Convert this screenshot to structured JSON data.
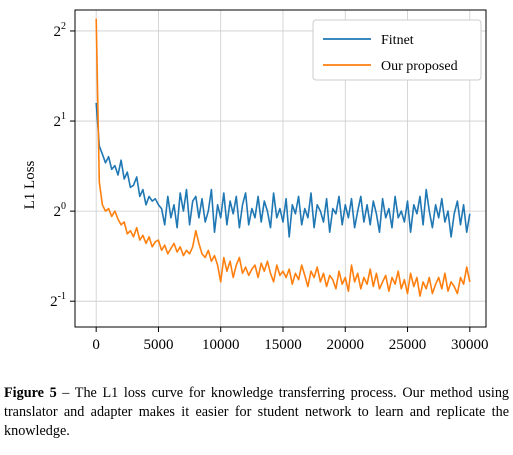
{
  "chart_data": {
    "type": "line",
    "ylabel": "L1 Loss",
    "y_scale": "log2",
    "ylim": [
      0.41,
      4.7
    ],
    "xlim": [
      -1700,
      31300
    ],
    "x_ticks": [
      0,
      5000,
      10000,
      15000,
      20000,
      25000,
      30000
    ],
    "x_tick_labels": [
      "0",
      "5000",
      "10000",
      "15000",
      "20000",
      "25000",
      "30000"
    ],
    "y_ticks": [
      0.5,
      1,
      2,
      4
    ],
    "y_tick_labels": [
      {
        "base": "2",
        "exp": "-1"
      },
      {
        "base": "2",
        "exp": "0"
      },
      {
        "base": "2",
        "exp": "1"
      },
      {
        "base": "2",
        "exp": "2"
      }
    ],
    "grid": true,
    "legend_position": "top-right",
    "series": [
      {
        "name": "Fitnet",
        "color": "#1f77b4",
        "x": [
          0,
          250,
          500,
          750,
          1000,
          1250,
          1500,
          1750,
          2000,
          2250,
          2500,
          2750,
          3000,
          3250,
          3500,
          3750,
          4000,
          4250,
          4500,
          4750,
          5000,
          5250,
          5500,
          5750,
          6000,
          6250,
          6500,
          6750,
          7000,
          7250,
          7500,
          7750,
          8000,
          8250,
          8500,
          8750,
          9000,
          9250,
          9500,
          9750,
          10000,
          10250,
          10500,
          10750,
          11000,
          11250,
          11500,
          11750,
          12000,
          12250,
          12500,
          12750,
          13000,
          13250,
          13500,
          13750,
          14000,
          14250,
          14500,
          14750,
          15000,
          15250,
          15500,
          15750,
          16000,
          16250,
          16500,
          16750,
          17000,
          17250,
          17500,
          17750,
          18000,
          18250,
          18500,
          18750,
          19000,
          19250,
          19500,
          19750,
          20000,
          20250,
          20500,
          20750,
          21000,
          21250,
          21500,
          21750,
          22000,
          22250,
          22500,
          22750,
          23000,
          23250,
          23500,
          23750,
          24000,
          24250,
          24500,
          24750,
          25000,
          25250,
          25500,
          25750,
          26000,
          26250,
          26500,
          26750,
          27000,
          27250,
          27500,
          27750,
          28000,
          28250,
          28500,
          28750,
          29000,
          29250,
          29500,
          29750,
          30000
        ],
        "values": [
          2.3,
          1.65,
          1.55,
          1.45,
          1.52,
          1.38,
          1.42,
          1.32,
          1.48,
          1.28,
          1.35,
          1.2,
          1.22,
          1.3,
          1.12,
          1.18,
          1.05,
          1.12,
          1.08,
          1.1,
          1.05,
          1.02,
          0.9,
          1.12,
          0.95,
          1.05,
          0.88,
          1.15,
          1.0,
          1.18,
          0.9,
          1.08,
          1.12,
          0.95,
          1.1,
          0.92,
          1.0,
          1.18,
          0.85,
          1.05,
          0.95,
          1.15,
          0.9,
          1.08,
          0.98,
          1.12,
          0.88,
          1.05,
          1.15,
          0.9,
          1.02,
          0.95,
          1.12,
          0.92,
          1.08,
          1.0,
          0.88,
          1.15,
          0.95,
          1.02,
          0.92,
          1.1,
          0.82,
          1.05,
          0.98,
          1.12,
          0.9,
          1.02,
          0.95,
          1.15,
          0.88,
          1.05,
          1.0,
          0.92,
          1.1,
          0.85,
          1.02,
          0.98,
          1.12,
          0.9,
          1.05,
          0.95,
          1.1,
          0.88,
          1.0,
          1.12,
          0.92,
          1.05,
          0.9,
          1.08,
          0.98,
          0.85,
          1.1,
          0.95,
          1.02,
          0.88,
          1.12,
          0.95,
          1.0,
          0.92,
          1.08,
          0.85,
          1.05,
          0.98,
          1.12,
          0.9,
          1.18,
          1.0,
          0.88,
          1.05,
          0.95,
          1.1,
          0.92,
          1.0,
          0.82,
          0.98,
          1.08,
          0.9,
          1.05,
          0.85,
          0.98
        ]
      },
      {
        "name": "Our proposed",
        "color": "#ff7f0e",
        "x": [
          0,
          250,
          500,
          750,
          1000,
          1250,
          1500,
          1750,
          2000,
          2250,
          2500,
          2750,
          3000,
          3250,
          3500,
          3750,
          4000,
          4250,
          4500,
          4750,
          5000,
          5250,
          5500,
          5750,
          6000,
          6250,
          6500,
          6750,
          7000,
          7250,
          7500,
          7750,
          8000,
          8250,
          8500,
          8750,
          9000,
          9250,
          9500,
          9750,
          10000,
          10250,
          10500,
          10750,
          11000,
          11250,
          11500,
          11750,
          12000,
          12250,
          12500,
          12750,
          13000,
          13250,
          13500,
          13750,
          14000,
          14250,
          14500,
          14750,
          15000,
          15250,
          15500,
          15750,
          16000,
          16250,
          16500,
          16750,
          17000,
          17250,
          17500,
          17750,
          18000,
          18250,
          18500,
          18750,
          19000,
          19250,
          19500,
          19750,
          20000,
          20250,
          20500,
          20750,
          21000,
          21250,
          21500,
          21750,
          22000,
          22250,
          22500,
          22750,
          23000,
          23250,
          23500,
          23750,
          24000,
          24250,
          24500,
          24750,
          25000,
          25250,
          25500,
          25750,
          26000,
          26250,
          26500,
          26750,
          27000,
          27250,
          27500,
          27750,
          28000,
          28250,
          28500,
          28750,
          29000,
          29250,
          29500,
          29750,
          30000
        ],
        "values": [
          4.4,
          1.25,
          1.05,
          1.0,
          1.02,
          0.96,
          1.0,
          0.94,
          0.9,
          0.92,
          0.84,
          0.86,
          0.82,
          0.88,
          0.8,
          0.83,
          0.78,
          0.82,
          0.76,
          0.79,
          0.8,
          0.74,
          0.77,
          0.72,
          0.75,
          0.78,
          0.73,
          0.76,
          0.71,
          0.74,
          0.72,
          0.76,
          0.86,
          0.78,
          0.72,
          0.7,
          0.74,
          0.68,
          0.71,
          0.66,
          0.58,
          0.7,
          0.63,
          0.68,
          0.6,
          0.66,
          0.7,
          0.62,
          0.65,
          0.61,
          0.64,
          0.66,
          0.6,
          0.67,
          0.63,
          0.68,
          0.62,
          0.58,
          0.66,
          0.61,
          0.63,
          0.6,
          0.64,
          0.57,
          0.62,
          0.59,
          0.66,
          0.61,
          0.56,
          0.63,
          0.6,
          0.65,
          0.58,
          0.62,
          0.56,
          0.61,
          0.59,
          0.55,
          0.63,
          0.57,
          0.6,
          0.54,
          0.66,
          0.58,
          0.62,
          0.55,
          0.6,
          0.57,
          0.64,
          0.56,
          0.62,
          0.55,
          0.58,
          0.61,
          0.54,
          0.6,
          0.57,
          0.63,
          0.55,
          0.59,
          0.53,
          0.62,
          0.56,
          0.6,
          0.52,
          0.58,
          0.55,
          0.6,
          0.53,
          0.57,
          0.6,
          0.55,
          0.62,
          0.54,
          0.58,
          0.56,
          0.53,
          0.6,
          0.57,
          0.65,
          0.58
        ]
      }
    ]
  },
  "caption": {
    "label": "Figure 5",
    "text": " – The L1 loss curve for knowledge transferring process.  Our method using translator and adapter makes it easier for student network to learn and replicate the knowledge."
  }
}
